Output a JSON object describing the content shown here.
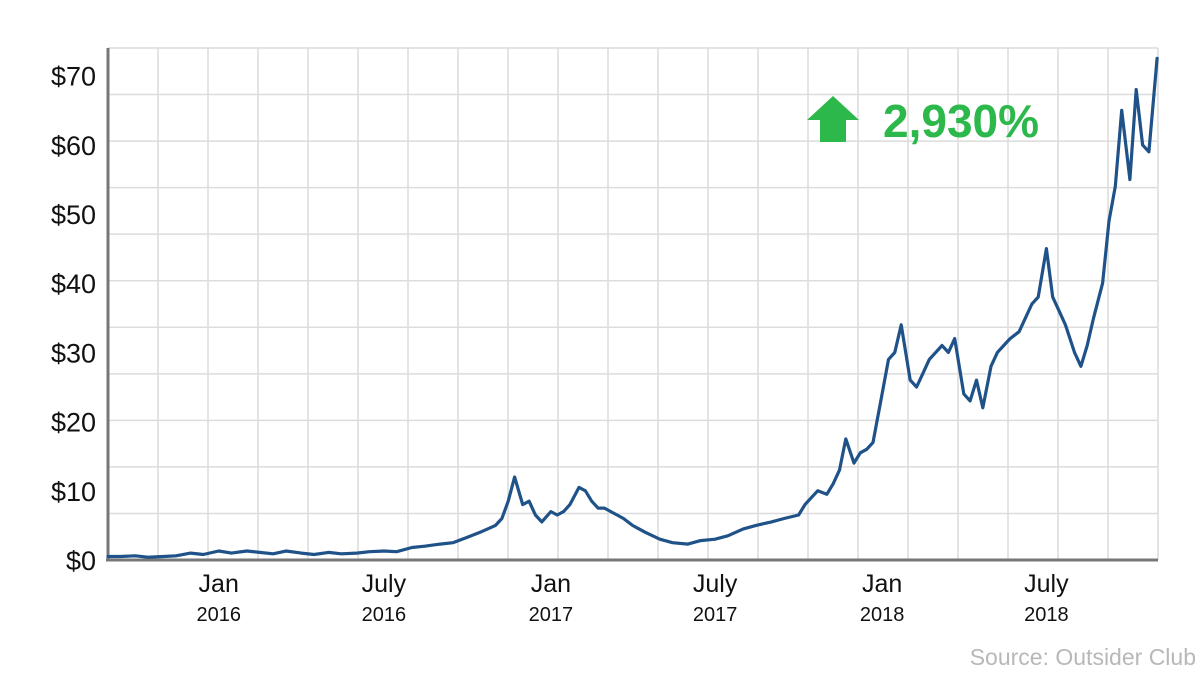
{
  "chart_data": {
    "type": "line",
    "ylim": [
      0,
      74
    ],
    "ytick_values": [
      0,
      10,
      20,
      30,
      40,
      50,
      60,
      70
    ],
    "ytick_labels": [
      "$0",
      "$10",
      "$20",
      "$30",
      "$40",
      "$50",
      "$60",
      "$70"
    ],
    "x_range_months": [
      "2015-09",
      "2018-10"
    ],
    "xtick_labels": [
      {
        "month": "Jan",
        "year": "2016",
        "date": "2016-01"
      },
      {
        "month": "July",
        "year": "2016",
        "date": "2016-07"
      },
      {
        "month": "Jan",
        "year": "2017",
        "date": "2017-01"
      },
      {
        "month": "July",
        "year": "2017",
        "date": "2017-07"
      },
      {
        "month": "Jan",
        "year": "2018",
        "date": "2018-01"
      },
      {
        "month": "July",
        "year": "2018",
        "date": "2018-07"
      }
    ],
    "grid": true,
    "line_color": "#1f5288",
    "series": [
      {
        "x": [
          "2015-09-01",
          "2015-09-15",
          "2015-10-01",
          "2015-10-15",
          "2015-11-01",
          "2015-11-15",
          "2015-12-01",
          "2015-12-15",
          "2016-01-01",
          "2016-01-15",
          "2016-02-01",
          "2016-02-15",
          "2016-03-01",
          "2016-03-15",
          "2016-04-01",
          "2016-04-15",
          "2016-05-01",
          "2016-05-15",
          "2016-06-01",
          "2016-06-15",
          "2016-07-01",
          "2016-07-15",
          "2016-08-01",
          "2016-08-15",
          "2016-09-01",
          "2016-09-15",
          "2016-10-01",
          "2016-10-15",
          "2016-11-01",
          "2016-11-08",
          "2016-11-15",
          "2016-11-22",
          "2016-12-01",
          "2016-12-08",
          "2016-12-15",
          "2016-12-22",
          "2017-01-01",
          "2017-01-08",
          "2017-01-15",
          "2017-01-22",
          "2017-02-01",
          "2017-02-08",
          "2017-02-15",
          "2017-02-22",
          "2017-03-01",
          "2017-03-08",
          "2017-03-15",
          "2017-03-22",
          "2017-04-01",
          "2017-04-15",
          "2017-05-01",
          "2017-05-15",
          "2017-06-01",
          "2017-06-15",
          "2017-07-01",
          "2017-07-15",
          "2017-08-01",
          "2017-08-15",
          "2017-09-01",
          "2017-09-15",
          "2017-10-01",
          "2017-10-08",
          "2017-10-15",
          "2017-10-22",
          "2017-11-01",
          "2017-11-08",
          "2017-11-15",
          "2017-11-22",
          "2017-12-01",
          "2017-12-08",
          "2017-12-15",
          "2017-12-22",
          "2018-01-01",
          "2018-01-08",
          "2018-01-15",
          "2018-01-22",
          "2018-02-01",
          "2018-02-08",
          "2018-02-15",
          "2018-02-22",
          "2018-03-01",
          "2018-03-08",
          "2018-03-15",
          "2018-03-22",
          "2018-04-01",
          "2018-04-08",
          "2018-04-15",
          "2018-04-22",
          "2018-05-01",
          "2018-05-08",
          "2018-05-15",
          "2018-05-22",
          "2018-06-01",
          "2018-06-08",
          "2018-06-15",
          "2018-06-22",
          "2018-07-01",
          "2018-07-08",
          "2018-07-15",
          "2018-07-22",
          "2018-08-01",
          "2018-08-08",
          "2018-08-15",
          "2018-08-22",
          "2018-09-01",
          "2018-09-08",
          "2018-09-15",
          "2018-09-22",
          "2018-10-01",
          "2018-10-08",
          "2018-10-15",
          "2018-10-22",
          "2018-10-31"
        ],
        "y": [
          0.5,
          0.5,
          0.6,
          0.4,
          0.5,
          0.6,
          1.0,
          0.8,
          1.3,
          1.0,
          1.3,
          1.1,
          0.9,
          1.3,
          1.0,
          0.8,
          1.1,
          0.9,
          1.0,
          1.2,
          1.3,
          1.2,
          1.8,
          2.0,
          2.3,
          2.5,
          3.3,
          4.0,
          5.0,
          6.0,
          8.5,
          12.0,
          8.0,
          8.5,
          6.5,
          5.5,
          7.0,
          6.5,
          7.0,
          8.0,
          10.5,
          10.0,
          8.5,
          7.5,
          7.5,
          7.0,
          6.5,
          6.0,
          5.0,
          4.0,
          3.0,
          2.5,
          2.3,
          2.8,
          3.0,
          3.5,
          4.5,
          5.0,
          5.5,
          6.0,
          6.5,
          8.0,
          9.0,
          10.0,
          9.5,
          11.0,
          13.0,
          17.5,
          14.0,
          15.5,
          16.0,
          17.0,
          24.0,
          29.0,
          30.0,
          34.0,
          26.0,
          25.0,
          27.0,
          29.0,
          30.0,
          31.0,
          30.0,
          32.0,
          24.0,
          23.0,
          26.0,
          22.0,
          28.0,
          30.0,
          31.0,
          32.0,
          33.0,
          35.0,
          37.0,
          38.0,
          45.0,
          38.0,
          36.0,
          34.0,
          30.0,
          28.0,
          31.0,
          35.0,
          40.0,
          49.0,
          54.0,
          65.0,
          55.0,
          68.0,
          60.0,
          59.0,
          72.5
        ]
      }
    ]
  },
  "callout": {
    "text": "2,930%",
    "color": "#2db84b",
    "icon": "up-arrow-icon"
  },
  "source": "Source: Outsider Club"
}
